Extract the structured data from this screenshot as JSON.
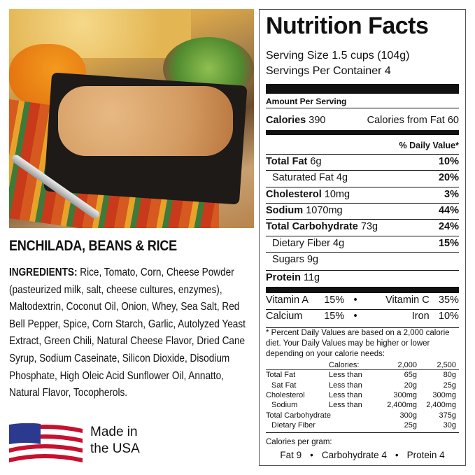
{
  "product": {
    "name": "ENCHILADA, BEANS & RICE",
    "ingredients_label": "INGREDIENTS:",
    "ingredients": "Rice, Tomato, Corn, Cheese Powder (pasteurized milk, salt, cheese cultures, enzymes), Maltodextrin, Coconut Oil, Onion, Whey, Sea Salt, Red Bell Pepper, Spice, Corn Starch, Garlic, Autolyzed Yeast Extract, Green Chili, Natural Cheese Flavor, Dried Cane Syrup, Sodium Caseinate, Silicon Dioxide, Disodium Phosphate, High Oleic Acid Sunflower Oil, Annatto, Natural Flavor, Tocopherols.",
    "made_line1": "Made in",
    "made_line2": "the USA"
  },
  "label": {
    "title": "Nutrition Facts",
    "serving_size": "Serving Size 1.5 cups (104g)",
    "servings": "Servings Per Container 4",
    "amount_per": "Amount Per Serving",
    "calories": "Calories",
    "calories_val": "390",
    "cal_fat": "Calories from Fat 60",
    "dv_header": "% Daily Value*",
    "rows": [
      {
        "name": "Total Fat",
        "amt": "6g",
        "dv": "10%",
        "bold": true
      },
      {
        "name": "Saturated Fat",
        "amt": "4g",
        "dv": "20%",
        "bold": false
      },
      {
        "name": "Cholesterol",
        "amt": "10mg",
        "dv": "3%",
        "bold": true
      },
      {
        "name": "Sodium",
        "amt": "1070mg",
        "dv": "44%",
        "bold": true
      },
      {
        "name": "Total Carbohydrate",
        "amt": "73g",
        "dv": "24%",
        "bold": true
      },
      {
        "name": "Dietary Fiber",
        "amt": "4g",
        "dv": "15%",
        "bold": false
      },
      {
        "name": "Sugars",
        "amt": "9g",
        "dv": "",
        "bold": false
      },
      {
        "name": "Protein",
        "amt": "11g",
        "dv": "",
        "bold": true
      }
    ],
    "vitamins": [
      [
        "Vitamin A",
        "15%",
        "Vitamin C",
        "35%"
      ],
      [
        "Calcium",
        "15%",
        "Iron",
        "10%"
      ]
    ],
    "footnote": "* Percent Daily Values are based on a 2,000 calorie diet. Your Daily Values may be higher or lower depending on your calorie needs:",
    "table_header": [
      "",
      "Calories:",
      "2,000",
      "2,500"
    ],
    "table": [
      [
        "Total Fat",
        "Less than",
        "65g",
        "80g"
      ],
      [
        "Sat Fat",
        "Less than",
        "20g",
        "25g"
      ],
      [
        "Cholesterol",
        "Less than",
        "300mg",
        "300mg"
      ],
      [
        "Sodium",
        "Less than",
        "2,400mg",
        "2,400mg"
      ],
      [
        "Total Carbohydrate",
        "",
        "300g",
        "375g"
      ],
      [
        "Dietary Fiber",
        "",
        "25g",
        "30g"
      ]
    ],
    "cal_per_gram": "Calories per gram:",
    "fat9": "Fat 9",
    "carb4": "Carbohydrate 4",
    "protein4": "Protein 4"
  }
}
